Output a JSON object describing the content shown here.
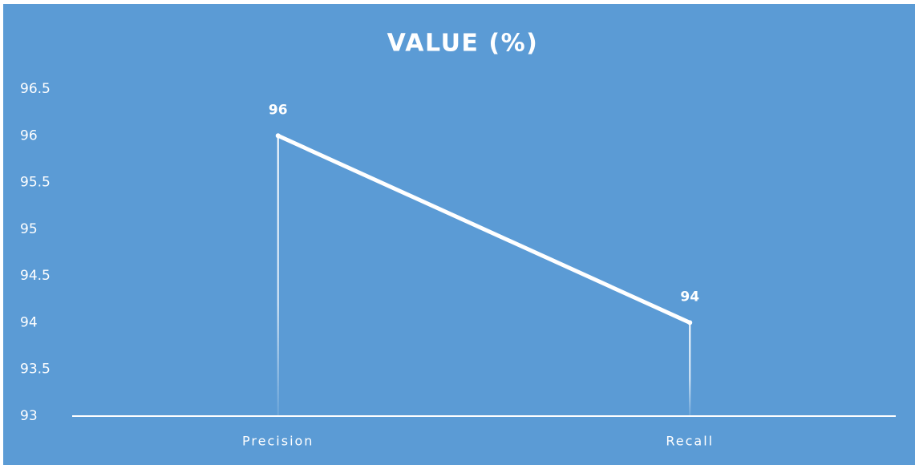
{
  "chart_data": {
    "type": "line",
    "title": "VALUE (%)",
    "categories": [
      "Precision",
      "Recall"
    ],
    "values": [
      96,
      94
    ],
    "color": "#ffffff",
    "ylim": [
      93,
      96.5
    ],
    "yticks": [
      93,
      93.5,
      94,
      94.5,
      95,
      95.5,
      96,
      96.5
    ]
  }
}
